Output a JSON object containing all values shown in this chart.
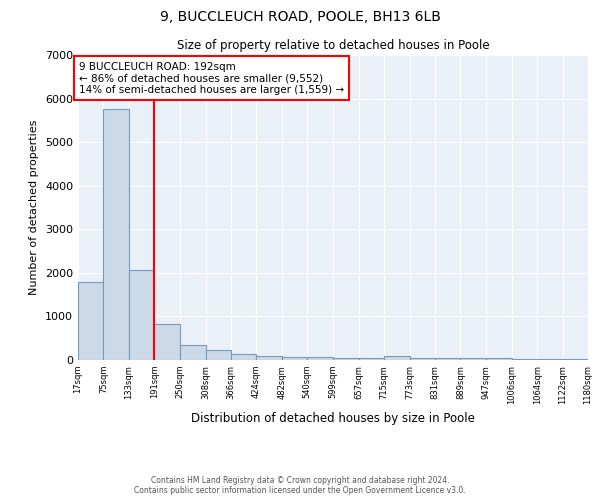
{
  "title1": "9, BUCCLEUCH ROAD, POOLE, BH13 6LB",
  "title2": "Size of property relative to detached houses in Poole",
  "xlabel": "Distribution of detached houses by size in Poole",
  "ylabel": "Number of detached properties",
  "annotation_line1": "9 BUCCLEUCH ROAD: 192sqm",
  "annotation_line2": "← 86% of detached houses are smaller (9,552)",
  "annotation_line3": "14% of semi-detached houses are larger (1,559) →",
  "bar_edges": [
    17,
    75,
    133,
    191,
    250,
    308,
    366,
    424,
    482,
    540,
    599,
    657,
    715,
    773,
    831,
    889,
    947,
    1006,
    1064,
    1122,
    1180
  ],
  "bar_heights": [
    1780,
    5750,
    2060,
    820,
    340,
    220,
    135,
    100,
    80,
    60,
    55,
    50,
    90,
    50,
    45,
    40,
    35,
    30,
    25,
    20
  ],
  "bar_color": "#ccd9e8",
  "bar_edgecolor": "#7799bb",
  "redline_x": 191,
  "ylim": [
    0,
    7000
  ],
  "yticks": [
    0,
    1000,
    2000,
    3000,
    4000,
    5000,
    6000,
    7000
  ],
  "background_color": "#eaf0f8",
  "grid_color": "#ffffff",
  "footnote1": "Contains HM Land Registry data © Crown copyright and database right 2024.",
  "footnote2": "Contains public sector information licensed under the Open Government Licence v3.0."
}
